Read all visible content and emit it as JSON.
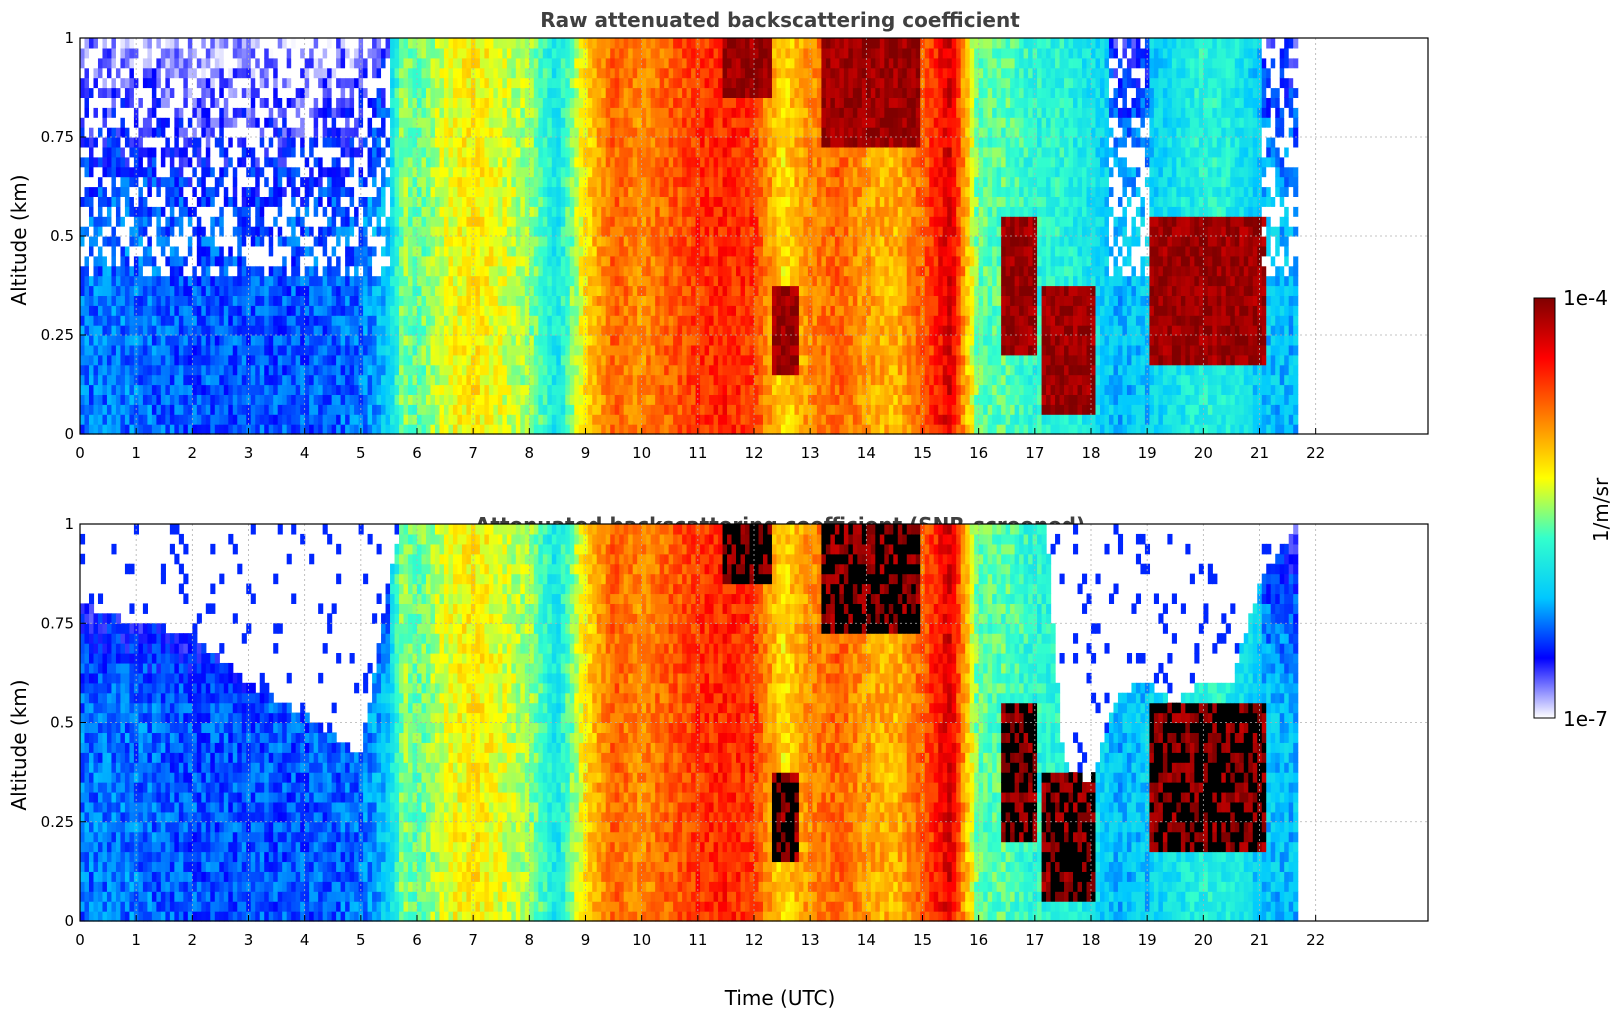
{
  "chart_data": [
    {
      "type": "heatmap",
      "title": "Raw attenuated backscattering coefficient",
      "xlabel": "",
      "ylabel": "Altitude (km)",
      "xlim": [
        0,
        24
      ],
      "ylim": [
        0,
        1
      ],
      "xticks": [
        "0",
        "1",
        "2",
        "3",
        "4",
        "5",
        "6",
        "7",
        "8",
        "9",
        "10",
        "11",
        "12",
        "13",
        "14",
        "15",
        "16",
        "17",
        "18",
        "19",
        "20",
        "21",
        "22"
      ],
      "yticks": [
        "0",
        "0.25",
        "0.5",
        "0.75",
        "1"
      ],
      "ytick_values": [
        0,
        0.25,
        0.5,
        0.75,
        1
      ],
      "grid": true,
      "data_extent_hours": 21.65,
      "screened": false,
      "profile": {
        "time_utc": [
          0,
          1,
          2,
          3,
          4,
          5,
          5.5,
          5.75,
          6,
          6.5,
          7,
          7.5,
          8,
          8.5,
          9,
          9.5,
          10,
          10.5,
          11,
          11.5,
          12,
          12.5,
          13,
          13.5,
          14,
          14.5,
          15,
          15.5,
          16,
          16.5,
          17,
          17.5,
          18,
          18.5,
          19,
          19.5,
          20,
          20.5,
          21,
          21.65
        ],
        "intensity": [
          0.22,
          0.22,
          0.2,
          0.2,
          0.2,
          0.22,
          0.3,
          0.5,
          0.45,
          0.55,
          0.6,
          0.55,
          0.5,
          0.35,
          0.6,
          0.75,
          0.7,
          0.75,
          0.8,
          0.82,
          0.8,
          0.6,
          0.7,
          0.75,
          0.68,
          0.65,
          0.75,
          0.9,
          0.45,
          0.45,
          0.4,
          0.4,
          0.35,
          0.28,
          0.3,
          0.35,
          0.4,
          0.38,
          0.3,
          0.28
        ]
      },
      "clouds": [
        {
          "t0": 11.4,
          "t1": 12.3,
          "base_km": 0.85,
          "top_km": 1.0
        },
        {
          "t0": 12.3,
          "t1": 12.8,
          "base_km": 0.15,
          "top_km": 0.38
        },
        {
          "t0": 13.2,
          "t1": 14.9,
          "base_km": 0.72,
          "top_km": 1.0
        },
        {
          "t0": 16.4,
          "t1": 17.0,
          "base_km": 0.2,
          "top_km": 0.55
        },
        {
          "t0": 17.1,
          "t1": 18.0,
          "base_km": 0.05,
          "top_km": 0.38
        },
        {
          "t0": 19.0,
          "t1": 21.1,
          "base_km": 0.18,
          "top_km": 0.55
        }
      ]
    },
    {
      "type": "heatmap",
      "title": "Attenuated backscattering coefficient (SNR-screened)",
      "xlabel": "Time (UTC)",
      "ylabel": "Altitude (km)",
      "xlim": [
        0,
        24
      ],
      "ylim": [
        0,
        1
      ],
      "xticks": [
        "0",
        "1",
        "2",
        "3",
        "4",
        "5",
        "6",
        "7",
        "8",
        "9",
        "10",
        "11",
        "12",
        "13",
        "14",
        "15",
        "16",
        "17",
        "18",
        "19",
        "20",
        "21",
        "22"
      ],
      "yticks": [
        "0",
        "0.25",
        "0.5",
        "0.75",
        "1"
      ],
      "ytick_values": [
        0,
        0.25,
        0.5,
        0.75,
        1
      ],
      "grid": true,
      "data_extent_hours": 21.65,
      "screened": true,
      "screen_top_km": {
        "time_utc": [
          0,
          1,
          2,
          3,
          4,
          5,
          5.5,
          5.7,
          17.2,
          17.5,
          18,
          18.5,
          19,
          19.5,
          20,
          20.5,
          21,
          21.65
        ],
        "top_km": [
          0.8,
          0.75,
          0.72,
          0.6,
          0.52,
          0.42,
          0.85,
          1.0,
          1.0,
          0.4,
          0.35,
          0.58,
          0.6,
          0.55,
          0.6,
          0.6,
          0.85,
          1.0
        ]
      }
    }
  ],
  "colorbar": {
    "label": "1/m/sr",
    "max_label": "1e-4",
    "min_label": "1e-7",
    "colormap": [
      "#ffffff",
      "#0000ff",
      "#00c8ff",
      "#33ffcc",
      "#ffff00",
      "#ff8000",
      "#ff0000",
      "#800000"
    ]
  }
}
